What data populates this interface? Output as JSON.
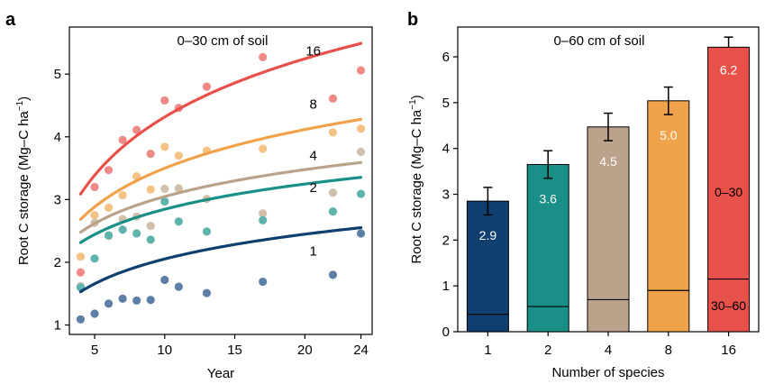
{
  "chart_data": [
    {
      "panel": "a",
      "type": "scatter",
      "annotation": "0–30 cm of soil",
      "xlabel": "Year",
      "ylabel": "Root C storage (Mg–C ha",
      "ylabel_sup": "−1",
      "ylabel_end": ")",
      "xlim": [
        3.2,
        24.8
      ],
      "ylim": [
        0.85,
        5.75
      ],
      "xticks": [
        5,
        10,
        15,
        20,
        24
      ],
      "yticks": [
        1,
        2,
        3,
        4,
        5
      ],
      "series": [
        {
          "label": "16",
          "color": "#e8504a",
          "point_color": "#ef8b86",
          "points": [
            [
              4,
              1.84
            ],
            [
              5,
              3.2
            ],
            [
              6,
              3.47
            ],
            [
              7,
              3.95
            ],
            [
              8,
              4.11
            ],
            [
              9,
              3.73
            ],
            [
              10,
              4.58
            ],
            [
              11,
              4.46
            ],
            [
              13,
              4.8
            ],
            [
              17,
              5.27
            ],
            [
              22,
              4.61
            ],
            [
              24,
              5.06
            ]
          ],
          "curve": {
            "a": 1.23,
            "b": 1.34
          }
        },
        {
          "label": "8",
          "color": "#f0a24b",
          "point_color": "#f5c285",
          "points": [
            [
              4,
              2.09
            ],
            [
              5,
              2.75
            ],
            [
              6,
              2.87
            ],
            [
              7,
              3.07
            ],
            [
              8,
              3.37
            ],
            [
              9,
              3.16
            ],
            [
              10,
              3.84
            ],
            [
              11,
              3.7
            ],
            [
              13,
              3.78
            ],
            [
              17,
              3.81
            ],
            [
              22,
              4.07
            ],
            [
              24,
              4.13
            ]
          ],
          "curve": {
            "a": 1.45,
            "b": 0.89
          }
        },
        {
          "label": "4",
          "color": "#baa28b",
          "point_color": "#d2c0ad",
          "points": [
            [
              4,
              1.62
            ],
            [
              5,
              2.63
            ],
            [
              6,
              2.42
            ],
            [
              7,
              2.69
            ],
            [
              8,
              2.73
            ],
            [
              9,
              2.58
            ],
            [
              10,
              3.17
            ],
            [
              11,
              3.18
            ],
            [
              13,
              3.01
            ],
            [
              17,
              2.78
            ],
            [
              22,
              3.11
            ],
            [
              24,
              3.76
            ]
          ],
          "curve": {
            "a": 1.62,
            "b": 0.62
          }
        },
        {
          "label": "2",
          "color": "#1a8f87",
          "point_color": "#5fb3ad",
          "points": [
            [
              4,
              1.6
            ],
            [
              5,
              2.06
            ],
            [
              6,
              2.43
            ],
            [
              7,
              2.52
            ],
            [
              8,
              2.46
            ],
            [
              9,
              2.36
            ],
            [
              10,
              2.97
            ],
            [
              11,
              2.65
            ],
            [
              13,
              2.49
            ],
            [
              17,
              2.67
            ],
            [
              22,
              2.81
            ],
            [
              24,
              3.09
            ]
          ],
          "curve": {
            "a": 1.51,
            "b": 0.58
          }
        },
        {
          "label": "1",
          "color": "#0f3f6e",
          "point_color": "#5c7fa5",
          "points": [
            [
              4,
              1.09
            ],
            [
              5,
              1.18
            ],
            [
              6,
              1.34
            ],
            [
              7,
              1.42
            ],
            [
              8,
              1.39
            ],
            [
              9,
              1.4
            ],
            [
              10,
              1.72
            ],
            [
              11,
              1.61
            ],
            [
              13,
              1.51
            ],
            [
              17,
              1.69
            ],
            [
              22,
              1.8
            ],
            [
              24,
              2.46
            ]
          ],
          "curve": {
            "a": 0.74,
            "b": 0.57
          }
        }
      ]
    },
    {
      "panel": "b",
      "type": "bar",
      "annotation": "0–60 cm of soil",
      "xlabel": "Number of species",
      "ylabel": "Root C storage (Mg–C ha",
      "ylabel_sup": "−1",
      "ylabel_end": ")",
      "categories": [
        "1",
        "2",
        "4",
        "8",
        "16"
      ],
      "values": [
        2.85,
        3.65,
        4.47,
        5.04,
        6.21
      ],
      "value_labels": [
        "2.9",
        "3.6",
        "4.5",
        "5.0",
        "6.2"
      ],
      "errors": [
        0.3,
        0.3,
        0.3,
        0.3,
        0.22
      ],
      "deep_layer": [
        0.38,
        0.55,
        0.7,
        0.9,
        1.15
      ],
      "colors": [
        "#0f3f6e",
        "#1a8f87",
        "#baa28b",
        "#f0a24b",
        "#e8504a"
      ],
      "layer_labels": {
        "top": "0–30",
        "bottom": "30–60"
      },
      "ylim": [
        0,
        6.65
      ],
      "yticks": [
        0,
        1,
        2,
        3,
        4,
        5,
        6
      ]
    }
  ],
  "panel_labels": [
    "a",
    "b"
  ]
}
